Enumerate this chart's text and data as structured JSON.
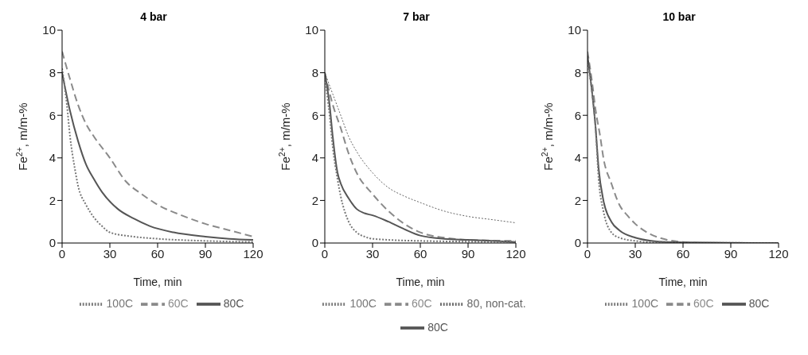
{
  "chart_data": [
    {
      "type": "line",
      "title": "4 bar",
      "xlabel": "Time, min",
      "ylabel": "Fe$^{2+}$, m/m-%",
      "xlim": [
        0,
        120
      ],
      "xticks": [
        0,
        30,
        60,
        90,
        120
      ],
      "ylim": [
        0,
        10
      ],
      "yticks": [
        0,
        2,
        4,
        6,
        8,
        10
      ],
      "legend": "bottom",
      "series": [
        {
          "name": "60C",
          "color": "#8a8a8a",
          "line_style": "dashed",
          "x": [
            0,
            5,
            10,
            15,
            20,
            30,
            40,
            50,
            60,
            75,
            90,
            105,
            120
          ],
          "values": [
            9,
            7.7,
            6.5,
            5.6,
            5,
            4,
            2.9,
            2.3,
            1.8,
            1.3,
            0.9,
            0.6,
            0.3
          ]
        },
        {
          "name": "80C",
          "color": "#555555",
          "line_style": "solid",
          "x": [
            0,
            5,
            10,
            15,
            20,
            25,
            35,
            45,
            55,
            70,
            90,
            105,
            120
          ],
          "values": [
            8,
            6.2,
            4.8,
            3.7,
            3,
            2.4,
            1.6,
            1.15,
            0.8,
            0.5,
            0.3,
            0.2,
            0.15
          ]
        },
        {
          "name": "100C",
          "color": "#777777",
          "line_style": "dotted",
          "x": [
            0,
            3,
            5,
            8,
            10,
            15,
            20,
            25,
            30,
            45,
            60,
            90,
            120
          ],
          "values": [
            8.2,
            6.5,
            5,
            3.5,
            2.7,
            1.8,
            1.2,
            0.8,
            0.5,
            0.3,
            0.2,
            0.1,
            0.05
          ]
        }
      ]
    },
    {
      "type": "line",
      "title": "7 bar",
      "xlabel": "Time, min",
      "ylabel": "Fe$^{2+}$, m/m-%",
      "xlim": [
        0,
        120
      ],
      "xticks": [
        0,
        30,
        60,
        90,
        120
      ],
      "ylim": [
        0,
        10
      ],
      "yticks": [
        0,
        2,
        4,
        6,
        8,
        10
      ],
      "legend": "bottom",
      "series": [
        {
          "name": "60C",
          "color": "#8a8a8a",
          "line_style": "dashed",
          "x": [
            0,
            5,
            10,
            15,
            20,
            30,
            40,
            50,
            60,
            75,
            90,
            120
          ],
          "values": [
            8,
            6.5,
            5.4,
            4.2,
            3.3,
            2.3,
            1.5,
            0.9,
            0.5,
            0.25,
            0.15,
            0.1
          ]
        },
        {
          "name": "80C",
          "color": "#555555",
          "line_style": "solid",
          "x": [
            0,
            3,
            5,
            8,
            10,
            15,
            20,
            25,
            30,
            40,
            50,
            60,
            75,
            90,
            120
          ],
          "values": [
            8,
            6.5,
            5,
            3.3,
            2.8,
            2.1,
            1.6,
            1.4,
            1.3,
            1,
            0.65,
            0.35,
            0.2,
            0.15,
            0.05
          ]
        },
        {
          "name": "100C",
          "color": "#777777",
          "line_style": "dotted",
          "x": [
            0,
            3,
            5,
            8,
            10,
            15,
            20,
            25,
            30,
            60,
            120
          ],
          "values": [
            7.8,
            6,
            4.5,
            3,
            2.2,
            1,
            0.5,
            0.3,
            0.2,
            0.1,
            0.05
          ]
        },
        {
          "name": "80, non-cat.",
          "color": "#666666",
          "line_style": "dotted",
          "x": [
            0,
            5,
            10,
            15,
            20,
            30,
            40,
            50,
            60,
            75,
            90,
            105,
            120
          ],
          "values": [
            8,
            7,
            6,
            5,
            4.3,
            3.3,
            2.6,
            2.2,
            1.9,
            1.5,
            1.25,
            1.1,
            0.95
          ]
        }
      ]
    },
    {
      "type": "line",
      "title": "10 bar",
      "xlabel": "Time, min",
      "ylabel": "Fe$^{2+}$, m/m-%",
      "xlim": [
        0,
        120
      ],
      "xticks": [
        0,
        30,
        60,
        90,
        120
      ],
      "ylim": [
        0,
        10
      ],
      "yticks": [
        0,
        2,
        4,
        6,
        8,
        10
      ],
      "legend": "bottom",
      "series": [
        {
          "name": "60C",
          "color": "#8a8a8a",
          "line_style": "dashed",
          "x": [
            0,
            3,
            5,
            8,
            10,
            15,
            20,
            25,
            30,
            40,
            50,
            60,
            75,
            120
          ],
          "values": [
            9,
            7.5,
            6.3,
            5,
            4,
            2.8,
            1.8,
            1.3,
            0.9,
            0.4,
            0.15,
            0.05,
            0,
            0
          ]
        },
        {
          "name": "80C",
          "color": "#555555",
          "line_style": "solid",
          "x": [
            0,
            3,
            5,
            7,
            10,
            15,
            20,
            30,
            40,
            50,
            120
          ],
          "values": [
            8.8,
            7,
            5.5,
            3.5,
            2,
            1,
            0.6,
            0.25,
            0.1,
            0.05,
            0
          ]
        },
        {
          "name": "100C",
          "color": "#777777",
          "line_style": "dotted",
          "x": [
            0,
            3,
            5,
            7,
            10,
            15,
            20,
            30,
            40,
            120
          ],
          "values": [
            8.5,
            7,
            5.5,
            3,
            1.5,
            0.5,
            0.25,
            0.1,
            0.03,
            0
          ]
        }
      ]
    }
  ]
}
